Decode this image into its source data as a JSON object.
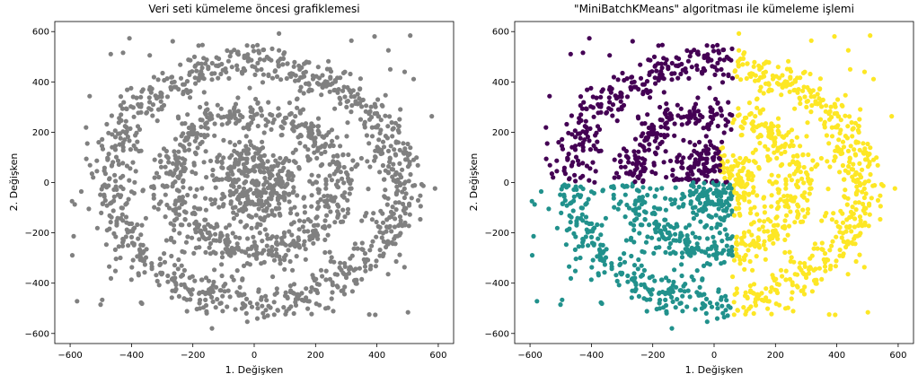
{
  "chart_data": [
    {
      "type": "scatter",
      "title": "Veri seti kümeleme öncesi grafiklemesi",
      "xlabel": "1. Değişken",
      "ylabel": "2. Değişken",
      "xlim": [
        -650,
        650
      ],
      "ylim": [
        -640,
        640
      ],
      "xticks": [
        -600,
        -400,
        -200,
        0,
        200,
        400,
        600
      ],
      "yticks": [
        -600,
        -400,
        -200,
        0,
        200,
        400,
        600
      ],
      "xtick_labels": [
        "−600",
        "−400",
        "−200",
        "0",
        "200",
        "400",
        "600"
      ],
      "ytick_labels": [
        "−600",
        "−400",
        "−200",
        "0",
        "200",
        "400",
        "600"
      ],
      "grid": false,
      "colors": [
        "#808080"
      ],
      "structure": "three concentric noisy rings centred at the origin (radii ≈ 100, 270, 470 in data units) plus sparse uniform background noise over [-600, 600] × [-600, 600]"
    },
    {
      "type": "scatter",
      "title": "\"MiniBatchKMeans\" algoritması ile kümeleme işlemi",
      "xlabel": "1. Değişken",
      "ylabel": "2. Değişken",
      "xlim": [
        -650,
        650
      ],
      "ylim": [
        -640,
        640
      ],
      "xticks": [
        -600,
        -400,
        -200,
        0,
        200,
        400,
        600
      ],
      "yticks": [
        -600,
        -400,
        -200,
        0,
        200,
        400,
        600
      ],
      "xtick_labels": [
        "−600",
        "−400",
        "−200",
        "0",
        "200",
        "400",
        "600"
      ],
      "ytick_labels": [
        "−600",
        "−400",
        "−200",
        "0",
        "200",
        "400",
        "600"
      ],
      "grid": false,
      "colors": [
        "#440154",
        "#21918c",
        "#fde725"
      ],
      "structure": "same points coloured by three k-means clusters: purple upper-left, teal lower-left, yellow right half"
    }
  ]
}
